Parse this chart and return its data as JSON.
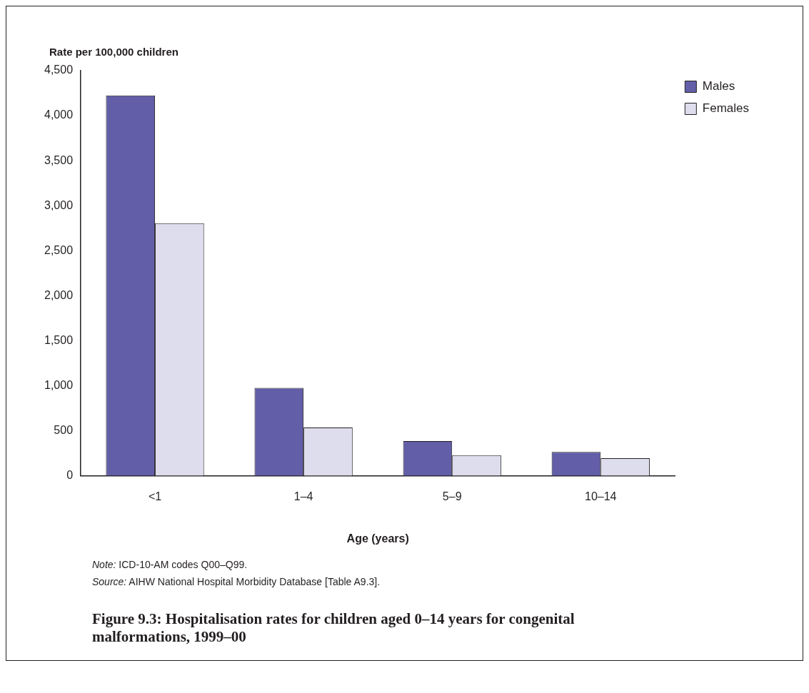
{
  "chart_data": {
    "type": "bar",
    "title": "Figure 9.3: Hospitalisation rates for children aged 0–14 years for congenital malformations, 1999–00",
    "xlabel": "Age (years)",
    "ylabel": "Rate per 100,000 children",
    "categories": [
      "<1",
      "1–4",
      "5–9",
      "10–14"
    ],
    "series": [
      {
        "name": "Males",
        "color": "#625ea8",
        "values": [
          4225,
          975,
          385,
          265
        ]
      },
      {
        "name": "Females",
        "color": "#dedded",
        "values": [
          2805,
          535,
          228,
          195
        ]
      }
    ],
    "ylim": [
      0,
      4500
    ],
    "yticks": [
      {
        "value": 0,
        "label": "0"
      },
      {
        "value": 500,
        "label": "500"
      },
      {
        "value": 1000,
        "label": "1,000"
      },
      {
        "value": 1500,
        "label": "1,500"
      },
      {
        "value": 2000,
        "label": "2,000"
      },
      {
        "value": 2500,
        "label": "2,500"
      },
      {
        "value": 3000,
        "label": "3,000"
      },
      {
        "value": 3500,
        "label": "3,500"
      },
      {
        "value": 4000,
        "label": "4,000"
      },
      {
        "value": 4500,
        "label": "4,500"
      }
    ],
    "grid": false,
    "legend": "top right",
    "annotations": [
      "*Note:* ICD-10-AM codes Q00–Q99.",
      "*Source:* AIHW National Hospital Morbidity Database [Table A9.3]."
    ]
  }
}
